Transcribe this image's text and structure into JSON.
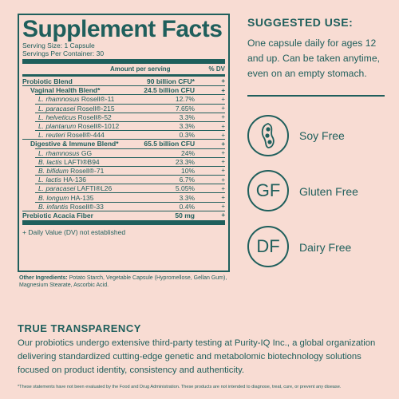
{
  "facts": {
    "title": "Supplement Facts",
    "serving_size": "Serving Size: 1 Capsule",
    "servings_per_container": "Servings Per Container: 30",
    "col_amount": "Amount per serving",
    "col_dv": "% DV",
    "rows": [
      {
        "name": "Probiotic Blend",
        "amount": "90 billion CFU*",
        "dv": "+"
      },
      {
        "name": "Vaginal Health Blend*",
        "amount": "24.5 billion CFU",
        "dv": "+"
      },
      {
        "species": "L. rhamnosus",
        "strain": " Rosell®-11",
        "amount": "12.7%",
        "dv": "+"
      },
      {
        "species": "L. paracasei",
        "strain": " Rosell®-215",
        "amount": "7.65%",
        "dv": "+"
      },
      {
        "species": "L. helveticus",
        "strain": " Rosell®-52",
        "amount": "3.3%",
        "dv": "+"
      },
      {
        "species": "L. plantarum",
        "strain": " Rosell®-1012",
        "amount": "3.3%",
        "dv": "+"
      },
      {
        "species": "L. reuteri",
        "strain": " Rosell®-444",
        "amount": "0.3%",
        "dv": "+"
      },
      {
        "name": "Digestive & Immune Blend*",
        "amount": "65.5 billion CFU",
        "dv": "+"
      },
      {
        "species": "L. rhamnosus",
        "strain": " GG",
        "amount": "24%",
        "dv": "+"
      },
      {
        "species": "B. lactis",
        "strain": " LAFTI®B94",
        "amount": "23.3%",
        "dv": "+"
      },
      {
        "species": "B. bifidum",
        "strain": " Rosell®-71",
        "amount": "10%",
        "dv": "+"
      },
      {
        "species": "L. lactis",
        "strain": " HA-136",
        "amount": "6.7%",
        "dv": "+"
      },
      {
        "species": "L. paracasei",
        "strain": " LAFTI®L26",
        "amount": "5.05%",
        "dv": "+"
      },
      {
        "species": "B. longum",
        "strain": " HA-135",
        "amount": "3.3%",
        "dv": "+"
      },
      {
        "species": "B. infantis",
        "strain": " Rosell®-33",
        "amount": "0.4%",
        "dv": "+"
      },
      {
        "name": "Prebiotic Acacia Fiber",
        "amount": "50 mg",
        "dv": "+"
      }
    ],
    "footnote": "+ Daily Value (DV) not established"
  },
  "other_ingredients": {
    "label": "Other Ingredients:",
    "text": " Potato Starch, Vegetable Capsule (Hypromellose, Gellan Gum), Magnesium Stearate, Ascorbic Acid."
  },
  "suggested": {
    "title": "SUGGESTED USE:",
    "text": "One capsule daily for ages 12 and up. Can be taken anytime, even on an empty stomach."
  },
  "badges": [
    {
      "icon": "soybean-icon",
      "label": "Soy Free"
    },
    {
      "icon": "GF",
      "label": "Gluten Free"
    },
    {
      "icon": "DF",
      "label": "Dairy Free"
    }
  ],
  "transparency": {
    "title": "TRUE TRANSPARENCY",
    "body": "Our probiotics undergo extensive third-party testing at Purity-IQ Inc., a global organization delivering standardized cutting-edge genetic and metabolomic biotechnology solutions focused on product identity, consistency and authenticity."
  },
  "disclaimer": "*These statements have not been evaluated by the Food and Drug Administration. These products are not intended to diagnose, treat, cure, or prevent any disease.",
  "colors": {
    "background": "#f8dcd3",
    "accent": "#1f5f5c"
  }
}
